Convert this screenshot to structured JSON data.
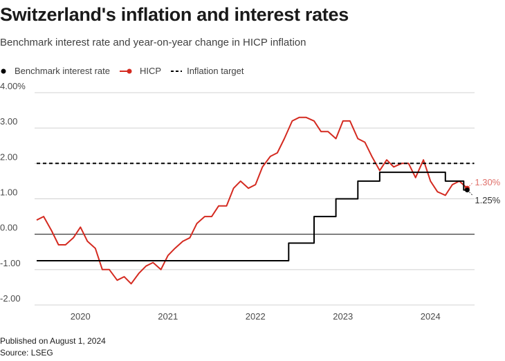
{
  "header": {
    "title": "Switzerland's inflation and interest rates",
    "subtitle": "Benchmark interest rate and year-on-year change in HICP inflation"
  },
  "legend": {
    "items": [
      {
        "label": "Benchmark interest rate",
        "color": "#000000"
      },
      {
        "label": "HICP",
        "color": "#d42a20"
      },
      {
        "label": "Inflation target",
        "color": "#000000"
      }
    ]
  },
  "footer": {
    "published": "Published on August 1, 2024",
    "source": "Source: LSEG"
  },
  "chart_data": {
    "type": "line",
    "title": "Switzerland's inflation and interest rates",
    "ylim": [
      -2,
      4
    ],
    "yticks": [
      4,
      3,
      2,
      1,
      0,
      -1,
      -2
    ],
    "ytick_labels": [
      "4.00%",
      "3.00",
      "2.00",
      "1.00",
      "0.00",
      "-1.00",
      "-2.00"
    ],
    "x_range": [
      2019.5,
      2024.5
    ],
    "xticks": [
      2020,
      2021,
      2022,
      2023,
      2024
    ],
    "xtick_labels": [
      "2020",
      "2021",
      "2022",
      "2023",
      "2024"
    ],
    "series": [
      {
        "name": "HICP",
        "color": "#d42a20",
        "x": [
          2019.5,
          2019.58,
          2019.67,
          2019.75,
          2019.83,
          2019.92,
          2020.0,
          2020.08,
          2020.17,
          2020.25,
          2020.33,
          2020.42,
          2020.5,
          2020.58,
          2020.67,
          2020.75,
          2020.83,
          2020.92,
          2021.0,
          2021.08,
          2021.17,
          2021.25,
          2021.33,
          2021.42,
          2021.5,
          2021.58,
          2021.67,
          2021.75,
          2021.83,
          2021.92,
          2022.0,
          2022.08,
          2022.17,
          2022.25,
          2022.33,
          2022.42,
          2022.5,
          2022.58,
          2022.67,
          2022.75,
          2022.83,
          2022.92,
          2023.0,
          2023.08,
          2023.17,
          2023.25,
          2023.33,
          2023.42,
          2023.5,
          2023.58,
          2023.67,
          2023.75,
          2023.83,
          2023.92,
          2024.0,
          2024.08,
          2024.17,
          2024.25,
          2024.33,
          2024.42
        ],
        "values": [
          0.4,
          0.5,
          0.1,
          -0.3,
          -0.3,
          -0.1,
          0.2,
          -0.2,
          -0.4,
          -1.0,
          -1.0,
          -1.3,
          -1.2,
          -1.4,
          -1.1,
          -0.9,
          -0.8,
          -1.0,
          -0.6,
          -0.4,
          -0.2,
          -0.1,
          0.3,
          0.5,
          0.5,
          0.8,
          0.8,
          1.3,
          1.5,
          1.3,
          1.4,
          1.9,
          2.2,
          2.3,
          2.7,
          3.2,
          3.3,
          3.3,
          3.2,
          2.9,
          2.9,
          2.7,
          3.2,
          3.2,
          2.7,
          2.6,
          2.2,
          1.8,
          2.1,
          1.9,
          2.0,
          2.0,
          1.6,
          2.1,
          1.5,
          1.2,
          1.1,
          1.4,
          1.5,
          1.3
        ]
      },
      {
        "name": "Benchmark interest rate",
        "color": "#000000",
        "step": true,
        "x": [
          2019.5,
          2022.38,
          2022.38,
          2022.67,
          2022.67,
          2022.92,
          2022.92,
          2023.17,
          2023.17,
          2023.42,
          2023.42,
          2024.17,
          2024.17,
          2024.38,
          2024.38,
          2024.42
        ],
        "values": [
          -0.75,
          -0.75,
          -0.25,
          -0.25,
          0.5,
          0.5,
          1.0,
          1.0,
          1.5,
          1.5,
          1.75,
          1.75,
          1.5,
          1.5,
          1.25,
          1.25
        ]
      },
      {
        "name": "Inflation target",
        "color": "#000000",
        "dashed": true,
        "x": [
          2019.5,
          2024.5
        ],
        "values": [
          2.0,
          2.0
        ]
      }
    ],
    "annotations": [
      {
        "text": "1.30%",
        "series": "HICP",
        "value": 1.3,
        "color": "#e0706a"
      },
      {
        "text": "1.25%",
        "series": "Benchmark interest rate",
        "value": 1.25,
        "color": "#333333"
      }
    ]
  }
}
